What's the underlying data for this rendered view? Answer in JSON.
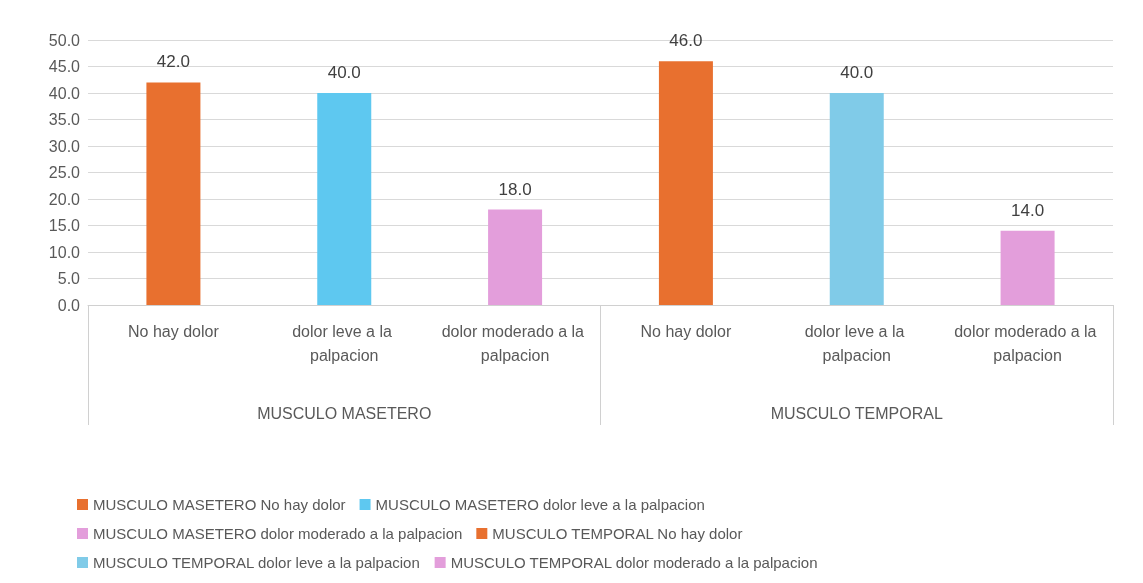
{
  "chart_data": {
    "type": "bar",
    "categories": [
      "No hay dolor",
      "dolor leve a la palpacion",
      "dolor moderado a la palpacion",
      "No hay dolor",
      "dolor leve a la palpacion",
      "dolor moderado a la palpacion"
    ],
    "annotations": [
      "MUSCULO MASETERO",
      "MUSCULO TEMPORAL"
    ],
    "series": [
      {
        "name": "MUSCULO MASETERO No hay dolor",
        "color": "#e8702f",
        "values": [
          42,
          null,
          null,
          null,
          null,
          null
        ],
        "value_labels": [
          "42.0",
          null,
          null,
          null,
          null,
          null
        ]
      },
      {
        "name": "MUSCULO MASETERO dolor leve a la palpacion",
        "color": "#5ec8f0",
        "values": [
          null,
          40,
          null,
          null,
          null,
          null
        ],
        "value_labels": [
          null,
          "40.0",
          null,
          null,
          null,
          null
        ]
      },
      {
        "name": "MUSCULO MASETERO dolor moderado a la palpacion",
        "color": "#e39edb",
        "values": [
          null,
          null,
          18,
          null,
          null,
          null
        ],
        "value_labels": [
          null,
          null,
          "18.0",
          null,
          null,
          null
        ]
      },
      {
        "name": "MUSCULO TEMPORAL No hay dolor",
        "color": "#e8702f",
        "values": [
          null,
          null,
          null,
          46,
          null,
          null
        ],
        "value_labels": [
          null,
          null,
          null,
          "46.0",
          null,
          null
        ]
      },
      {
        "name": "MUSCULO TEMPORAL dolor leve a la palpacion",
        "color": "#80cbe8",
        "values": [
          null,
          null,
          null,
          null,
          40,
          null
        ],
        "value_labels": [
          null,
          null,
          null,
          null,
          "40.0",
          null
        ]
      },
      {
        "name": "MUSCULO TEMPORAL dolor moderado a la palpacion",
        "color": "#e39edb",
        "values": [
          null,
          null,
          null,
          null,
          null,
          14
        ],
        "value_labels": [
          null,
          null,
          null,
          null,
          null,
          "14.0"
        ]
      }
    ],
    "ylim": [
      0,
      50
    ],
    "yticks": [
      {
        "value": 0,
        "label": "0.0"
      },
      {
        "value": 5,
        "label": "5.0"
      },
      {
        "value": 10,
        "label": "10.0"
      },
      {
        "value": 15,
        "label": "15.0"
      },
      {
        "value": 20,
        "label": "20.0"
      },
      {
        "value": 25,
        "label": "25.0"
      },
      {
        "value": 30,
        "label": "30.0"
      },
      {
        "value": 35,
        "label": "35.0"
      },
      {
        "value": 40,
        "label": "40.0"
      },
      {
        "value": 45,
        "label": "45.0"
      },
      {
        "value": 50,
        "label": "50.0"
      }
    ],
    "grid": "y",
    "legend": "bottom"
  }
}
